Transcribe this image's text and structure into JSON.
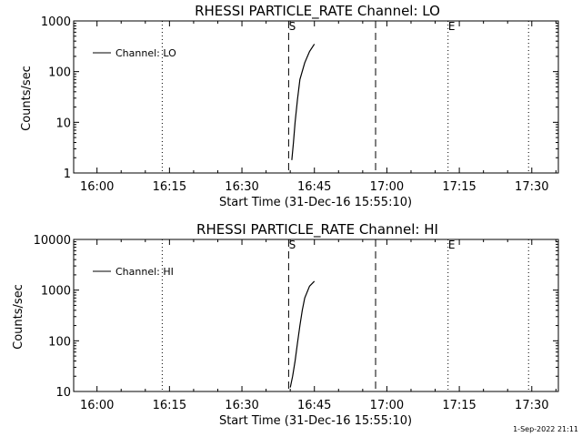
{
  "chart_data": [
    {
      "type": "line",
      "title": "RHESSI PARTICLE_RATE Channel: LO",
      "xlabel": "Start Time (31-Dec-16 15:55:10)",
      "ylabel": "Counts/sec",
      "y_scale": "log",
      "ylim": [
        1,
        1000
      ],
      "xlim": [
        "15:55:10",
        "17:35:30"
      ],
      "x_ticks": [
        "16:00",
        "16:15",
        "16:30",
        "16:45",
        "17:00",
        "17:15",
        "17:30"
      ],
      "y_ticks": [
        "1",
        "10",
        "100",
        "1000"
      ],
      "legend": "top-left",
      "dotted_lines_x": [
        "16:13:30",
        "17:12:40",
        "17:29:20"
      ],
      "dashed_lines_x": [
        "16:39:40",
        "16:57:40"
      ],
      "markers": [
        {
          "label": "S",
          "x": "16:39:40"
        },
        {
          "label": "E",
          "x": "17:12:40"
        }
      ],
      "series": [
        {
          "name": "Channel: LO",
          "color": "#000000",
          "x": [
            "16:40:20",
            "16:40:40",
            "16:41:00",
            "16:41:30",
            "16:42:00",
            "16:43:00",
            "16:44:00",
            "16:45:00"
          ],
          "values": [
            1.8,
            4,
            10,
            28,
            70,
            150,
            250,
            350
          ]
        }
      ]
    },
    {
      "type": "line",
      "title": "RHESSI PARTICLE_RATE Channel: HI",
      "xlabel": "Start Time (31-Dec-16 15:55:10)",
      "ylabel": "Counts/sec",
      "y_scale": "log",
      "ylim": [
        10,
        10000
      ],
      "xlim": [
        "15:55:10",
        "17:35:30"
      ],
      "x_ticks": [
        "16:00",
        "16:15",
        "16:30",
        "16:45",
        "17:00",
        "17:15",
        "17:30"
      ],
      "y_ticks": [
        "10",
        "100",
        "1000",
        "10000"
      ],
      "legend": "top-left",
      "dotted_lines_x": [
        "16:13:30",
        "17:12:40",
        "17:29:20"
      ],
      "dashed_lines_x": [
        "16:39:40",
        "16:57:40"
      ],
      "markers": [
        {
          "label": "S",
          "x": "16:39:40"
        },
        {
          "label": "E",
          "x": "17:12:40"
        }
      ],
      "series": [
        {
          "name": "Channel: HI",
          "color": "#000000",
          "x": [
            "16:40:00",
            "16:40:30",
            "16:41:00",
            "16:41:30",
            "16:42:00",
            "16:42:30",
            "16:43:00",
            "16:44:00",
            "16:45:00"
          ],
          "values": [
            12,
            20,
            40,
            90,
            200,
            400,
            700,
            1200,
            1500
          ]
        }
      ]
    }
  ],
  "footer": {
    "date_stamp": "1-Sep-2022 21:11"
  }
}
